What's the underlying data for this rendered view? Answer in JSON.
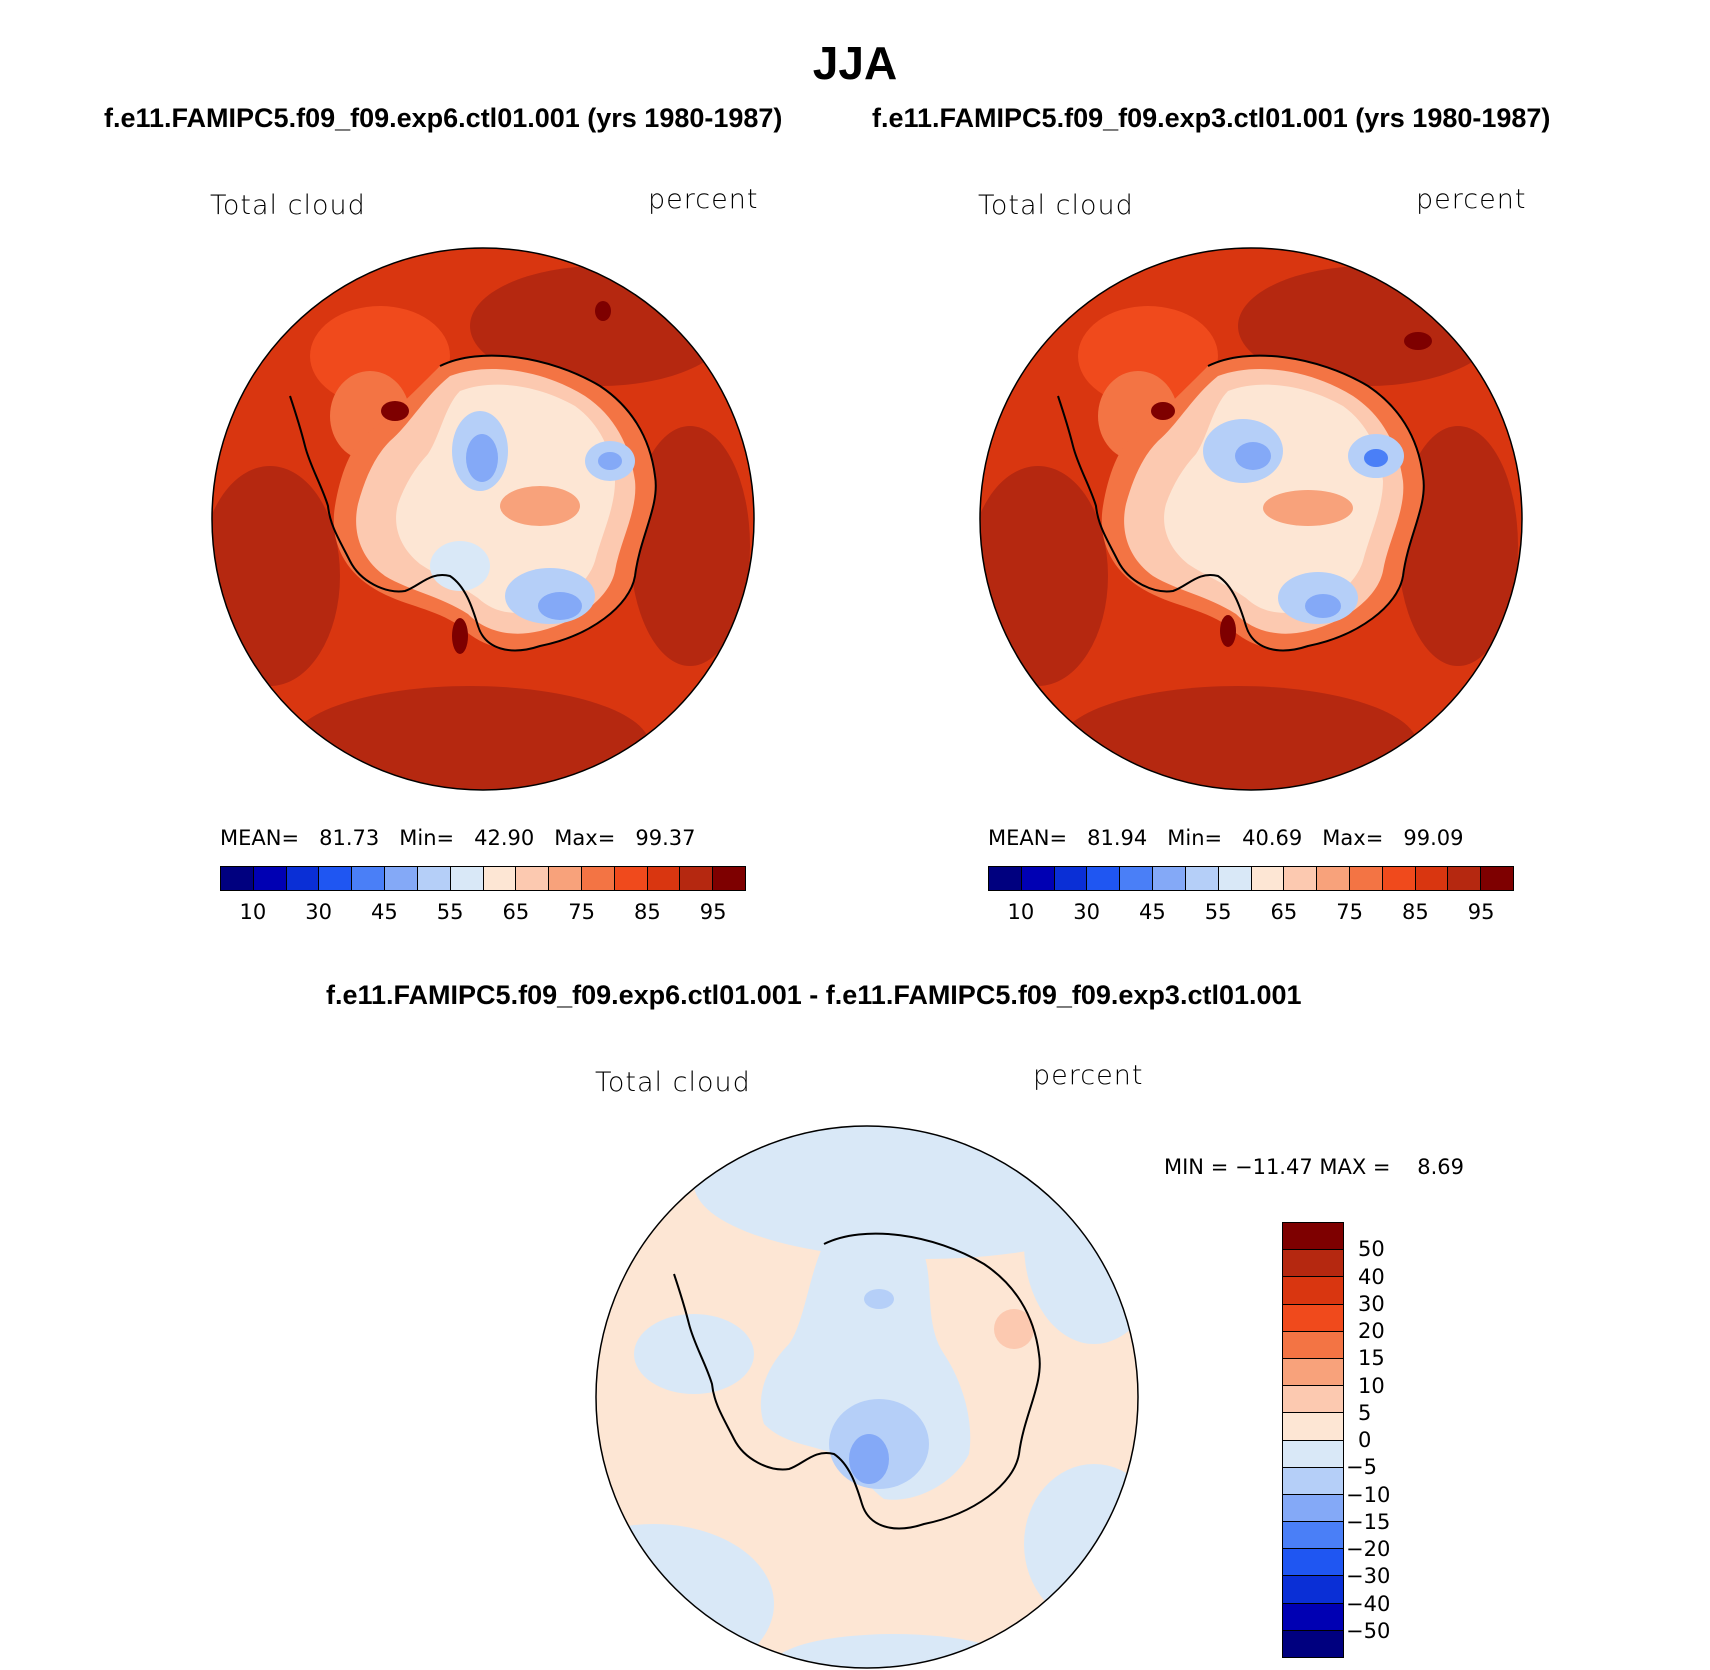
{
  "title": "JJA",
  "panels": [
    {
      "case_title": "f.e11.FAMIPC5.f09_f09.exp6.ctl01.001 (yrs 1980-1987)",
      "variable": "Total cloud",
      "units": "percent",
      "stats": {
        "mean_label": "MEAN=",
        "mean": "81.73",
        "min_label": "Min=",
        "min": "42.90",
        "max_label": "Max=",
        "max": "99.37"
      },
      "ocean_color": "#c52e0f"
    },
    {
      "case_title": "f.e11.FAMIPC5.f09_f09.exp3.ctl01.001 (yrs 1980-1987)",
      "variable": "Total cloud",
      "units": "percent",
      "stats": {
        "mean_label": "MEAN=",
        "mean": "81.94",
        "min_label": "Min=",
        "min": "40.69",
        "max_label": "Max=",
        "max": "99.09"
      },
      "ocean_color": "#c52e0f"
    }
  ],
  "colorbar": {
    "colors": [
      "#00007f",
      "#0000b3",
      "#0a2fd6",
      "#1f56f2",
      "#4a7ff7",
      "#84a9f7",
      "#b5cff8",
      "#d9e8f7",
      "#fde6d4",
      "#fcc9b0",
      "#f8a27b",
      "#f37444",
      "#f04a1c",
      "#d93610",
      "#b52810",
      "#7e0000"
    ],
    "labels": [
      "10",
      "30",
      "45",
      "55",
      "65",
      "75",
      "85",
      "95"
    ]
  },
  "diff": {
    "title": "f.e11.FAMIPC5.f09_f09.exp6.ctl01.001 - f.e11.FAMIPC5.f09_f09.exp3.ctl01.001",
    "variable": "Total cloud",
    "units": "percent",
    "min_label": "MIN =",
    "min": "−11.47",
    "max_label": "MAX =",
    "max": "8.69",
    "colorbar": {
      "colors": [
        "#7e0000",
        "#b52810",
        "#d93610",
        "#f04a1c",
        "#f37444",
        "#f8a27b",
        "#fcc9b0",
        "#fde6d4",
        "#d9e8f7",
        "#b5cff8",
        "#84a9f7",
        "#4a7ff7",
        "#1f56f2",
        "#0a2fd6",
        "#0000b3",
        "#00007f"
      ],
      "labels": [
        "50",
        "40",
        "30",
        "20",
        "15",
        "10",
        "5",
        "0",
        "−5",
        "−10",
        "−15",
        "−20",
        "−30",
        "−40",
        "−50"
      ]
    }
  }
}
